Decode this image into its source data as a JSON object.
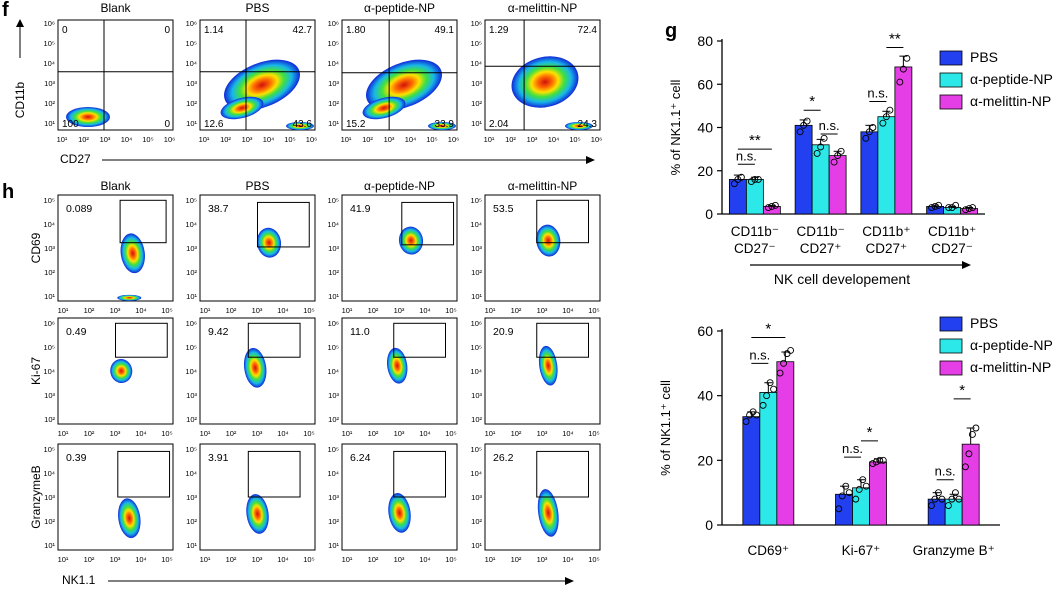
{
  "panels": {
    "f_letter": "f",
    "g_letter": "g",
    "h_letter": "h"
  },
  "flow_f": {
    "groups": [
      "Blank",
      "PBS",
      "α-peptide-NP",
      "α-melittin-NP"
    ],
    "xaxis_label": "CD27",
    "yaxis_label": "CD11b",
    "x_ticks": [
      "10¹",
      "10²",
      "10³",
      "10⁴",
      "10⁵",
      "10⁶"
    ],
    "y_ticks": [
      "10⁶",
      "10⁵",
      "10⁴",
      "10³",
      "10²",
      "10¹"
    ],
    "quadrants": [
      {
        "tl": "0",
        "tr": "0",
        "bl": "100",
        "br": "0"
      },
      {
        "tl": "1.14",
        "tr": "42.7",
        "bl": "12.6",
        "br": "43.6"
      },
      {
        "tl": "1.80",
        "tr": "49.1",
        "bl": "15.2",
        "br": "33.9"
      },
      {
        "tl": "1.29",
        "tr": "72.4",
        "bl": "2.04",
        "br": "24.3"
      }
    ]
  },
  "flow_h": {
    "groups": [
      "Blank",
      "PBS",
      "α-peptide-NP",
      "α-melittin-NP"
    ],
    "xaxis_label": "NK1.1",
    "x_ticks": [
      "10¹",
      "10²",
      "10³",
      "10⁴",
      "10⁵"
    ],
    "rows": [
      {
        "label": "CD69",
        "y_ticks": [
          "10⁵",
          "10⁴",
          "10³",
          "10²",
          "10¹"
        ],
        "values": [
          "0.089",
          "38.7",
          "41.9",
          "53.5"
        ]
      },
      {
        "label": "Ki-67",
        "y_ticks": [
          "10⁶",
          "10⁵",
          "10⁴",
          "10³",
          "10²"
        ],
        "values": [
          "0.49",
          "9.42",
          "11.0",
          "20.9"
        ]
      },
      {
        "label": "GranzymeB",
        "y_ticks": [
          "10⁵",
          "10⁴",
          "10³",
          "10²",
          "10¹"
        ],
        "values": [
          "0.39",
          "3.91",
          "6.24",
          "26.2"
        ]
      }
    ]
  },
  "chart_data": [
    {
      "type": "bar",
      "ylabel": "% of NK1.1⁺ cell",
      "xlabel": "NK cell developement",
      "ylim": [
        0,
        80
      ],
      "yticks": [
        0,
        20,
        40,
        60,
        80
      ],
      "categories": [
        [
          "CD11b⁻",
          "CD27⁻"
        ],
        [
          "CD11b⁻",
          "CD27⁺"
        ],
        [
          "CD11b⁺",
          "CD27⁺"
        ],
        [
          "CD11b⁺",
          "CD27⁻"
        ]
      ],
      "series": [
        {
          "name": "PBS",
          "color": "#2340f0",
          "values": [
            16,
            41,
            38,
            3.5
          ],
          "errors": [
            2,
            2.5,
            3,
            0.6
          ],
          "points": [
            [
              14,
              16,
              17
            ],
            [
              38,
              41,
              43
            ],
            [
              35,
              38,
              40
            ],
            [
              3,
              3.5,
              4
            ]
          ]
        },
        {
          "name": "α-peptide-NP",
          "color": "#2de8e8",
          "values": [
            16,
            32,
            45,
            3
          ],
          "errors": [
            1,
            2.5,
            2.5,
            0.5
          ],
          "points": [
            [
              15,
              16,
              16
            ],
            [
              28,
              31,
              35
            ],
            [
              42,
              45,
              48
            ],
            [
              3,
              3,
              4
            ]
          ]
        },
        {
          "name": "α-melittin-NP",
          "color": "#e63ee6",
          "values": [
            3.5,
            27,
            68,
            2.5
          ],
          "errors": [
            0.5,
            2,
            5,
            0.5
          ],
          "points": [
            [
              3,
              3.5,
              4
            ],
            [
              24,
              27,
              29
            ],
            [
              61,
              67,
              72
            ],
            [
              2,
              2.5,
              3
            ]
          ]
        }
      ],
      "significance": [
        {
          "text": "n.s.",
          "cat": 0,
          "from": 0,
          "to": 1,
          "y": 23
        },
        {
          "text": "**",
          "cat": 0,
          "from": 0,
          "to": 2,
          "y": 30
        },
        {
          "text": "*",
          "cat": 1,
          "from": 0,
          "to": 1,
          "y": 48
        },
        {
          "text": "n.s.",
          "cat": 1,
          "from": 1,
          "to": 2,
          "y": 37
        },
        {
          "text": "n.s.",
          "cat": 2,
          "from": 0,
          "to": 1,
          "y": 52
        },
        {
          "text": "**",
          "cat": 2,
          "from": 1,
          "to": 2,
          "y": 77
        }
      ]
    },
    {
      "type": "bar",
      "ylabel": "% of NK1.1⁺ cell",
      "ylim": [
        0,
        60
      ],
      "yticks": [
        0,
        20,
        40,
        60
      ],
      "categories": [
        "CD69⁺",
        "Ki-67⁺",
        "Granzyme B⁺"
      ],
      "series": [
        {
          "name": "PBS",
          "color": "#2340f0",
          "values": [
            33.5,
            9.5,
            8
          ],
          "errors": [
            1.5,
            2.5,
            2
          ],
          "points": [
            [
              32,
              34,
              35,
              34
            ],
            [
              5,
              9,
              12,
              10
            ],
            [
              6,
              8,
              10,
              8
            ]
          ]
        },
        {
          "name": "α-peptide-NP",
          "color": "#2de8e8",
          "values": [
            41,
            11.5,
            8
          ],
          "errors": [
            3,
            2.5,
            1.5
          ],
          "points": [
            [
              37,
              40,
              44,
              42
            ],
            [
              8,
              11,
              14,
              12
            ],
            [
              6,
              8,
              10,
              8
            ]
          ]
        },
        {
          "name": "α-melittin-NP",
          "color": "#e63ee6",
          "values": [
            50.5,
            19.5,
            25
          ],
          "errors": [
            3,
            1,
            5
          ],
          "points": [
            [
              47,
              50,
              53,
              54
            ],
            [
              19,
              19.5,
              20,
              20
            ],
            [
              18,
              22,
              28,
              30
            ]
          ]
        }
      ],
      "significance": [
        {
          "text": "n.s.",
          "cat": 0,
          "from": 0,
          "to": 1,
          "y": 50
        },
        {
          "text": "*",
          "cat": 0,
          "from": 0,
          "to": 2,
          "y": 58
        },
        {
          "text": "n.s.",
          "cat": 1,
          "from": 0,
          "to": 1,
          "y": 21
        },
        {
          "text": "*",
          "cat": 1,
          "from": 1,
          "to": 2,
          "y": 26
        },
        {
          "text": "n.s.",
          "cat": 2,
          "from": 0,
          "to": 1,
          "y": 14
        },
        {
          "text": "*",
          "cat": 2,
          "from": 1,
          "to": 2,
          "y": 39
        }
      ]
    }
  ]
}
